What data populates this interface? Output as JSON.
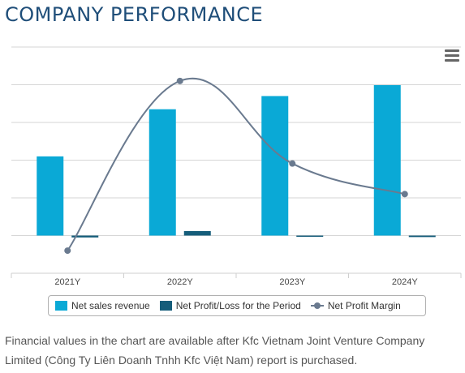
{
  "header": {
    "title": "COMPANY PERFORMANCE"
  },
  "menu": {
    "icon": "hamburger-menu-icon"
  },
  "colors": {
    "revenue": "#0aa9d6",
    "profit": "#155d7a",
    "margin_line": "#6a7a8f",
    "grid": "#d6d6d6"
  },
  "legend": {
    "revenue": "Net sales revenue",
    "profit": "Net Profit/Loss for the Period",
    "margin": "Net Profit Margin"
  },
  "footnote": "Financial values in the chart are available after Kfc Vietnam Joint Venture Company Limited (Công Ty Liên Doanh Tnhh Kfc Việt Nam) report is purchased.",
  "chart_data": {
    "type": "bar",
    "categories": [
      "2021Y",
      "2022Y",
      "2023Y",
      "2024Y"
    ],
    "series": [
      {
        "name": "Net sales revenue",
        "type": "bar",
        "values": [
          2.1,
          3.35,
          3.7,
          3.99
        ]
      },
      {
        "name": "Net Profit/Loss for the Period",
        "type": "bar",
        "values": [
          -0.05,
          0.12,
          0.0,
          -0.04
        ]
      },
      {
        "name": "Net Profit Margin",
        "type": "line",
        "values": [
          -3.0,
          12.0,
          4.7,
          2.0
        ]
      }
    ],
    "ylim": [
      -1,
      5
    ],
    "y2lim": [
      -5,
      15
    ],
    "grid": true,
    "legend_position": "bottom"
  }
}
